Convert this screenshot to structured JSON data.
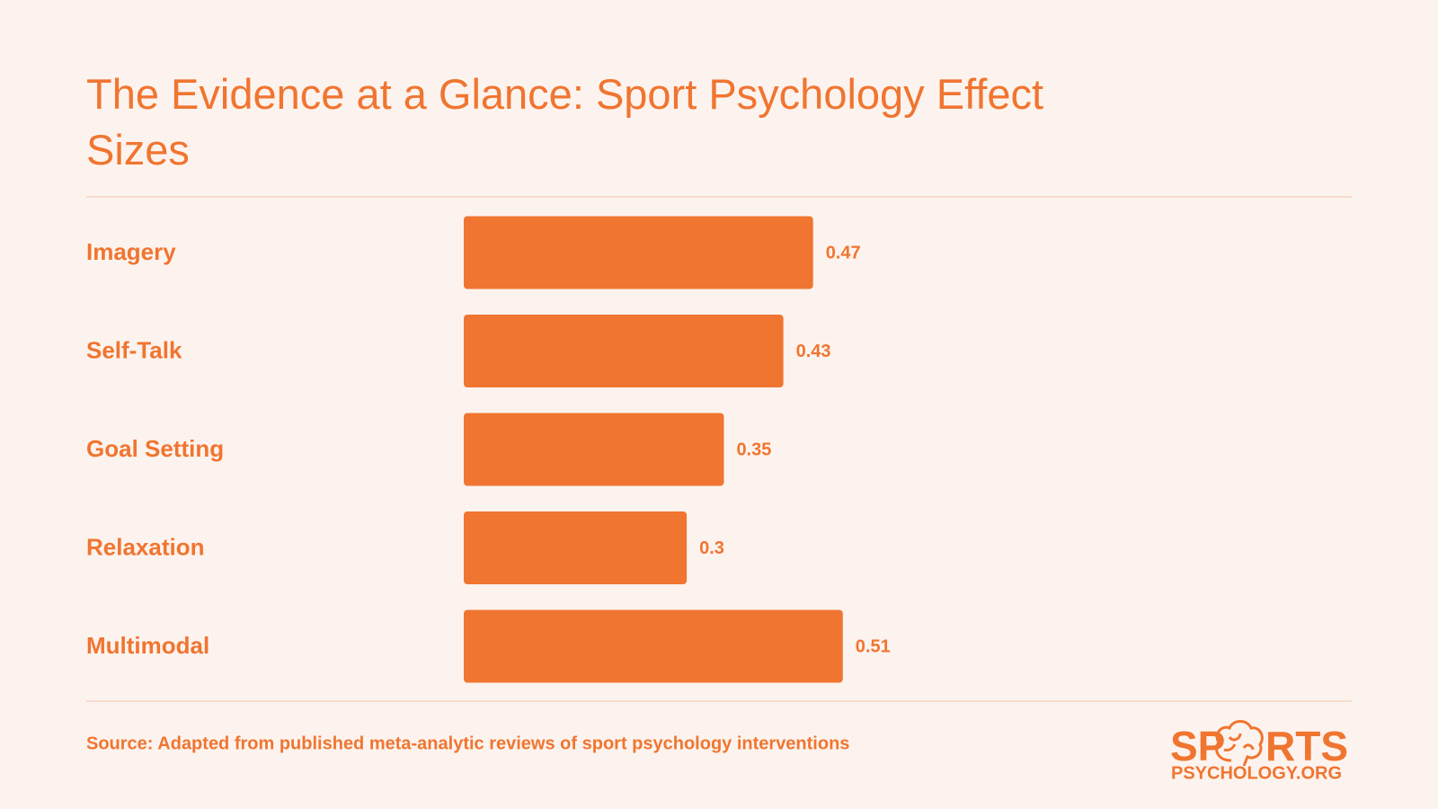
{
  "chart_data": {
    "type": "bar",
    "orientation": "horizontal",
    "title": "The Evidence at a Glance: Sport Psychology Effect Sizes",
    "categories": [
      "Imagery",
      "Self-Talk",
      "Goal Setting",
      "Relaxation",
      "Multimodal"
    ],
    "values": [
      0.47,
      0.43,
      0.35,
      0.3,
      0.51
    ],
    "color": "#f07530",
    "source": "Source: Adapted from published meta-analytic reviews of sport psychology interventions"
  },
  "logo": {
    "left": "SP",
    "right": "RTS",
    "bottom": "PSYCHOLOGY.ORG"
  }
}
